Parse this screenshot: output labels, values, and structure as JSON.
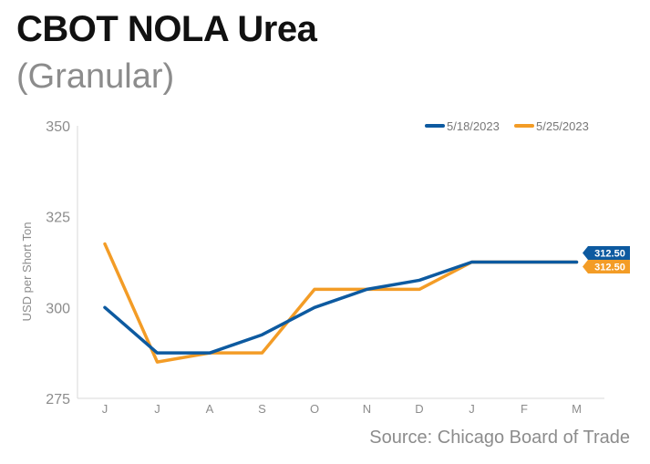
{
  "header": {
    "title": "CBOT NOLA Urea",
    "subtitle": "(Granular)"
  },
  "source": "Source: Chicago Board of Trade",
  "chart_data": {
    "type": "line",
    "ylabel": "USD per Short Ton",
    "categories": [
      "J",
      "J",
      "A",
      "S",
      "O",
      "N",
      "D",
      "J",
      "F",
      "M"
    ],
    "ylim": [
      275,
      350
    ],
    "yticks": [
      275,
      300,
      325,
      350
    ],
    "legend_position": "top-right",
    "series": [
      {
        "name": "5/18/2023",
        "color": "#0d5aa0",
        "values": [
          300,
          287.5,
          287.5,
          292.5,
          300,
          305,
          307.5,
          312.5,
          312.5,
          312.5
        ],
        "end_label": "312.50"
      },
      {
        "name": "5/25/2023",
        "color": "#f39c26",
        "values": [
          317.5,
          285,
          287.5,
          287.5,
          305,
          305,
          305,
          312.5,
          312.5,
          312.5
        ],
        "end_label": "312.50"
      }
    ]
  }
}
